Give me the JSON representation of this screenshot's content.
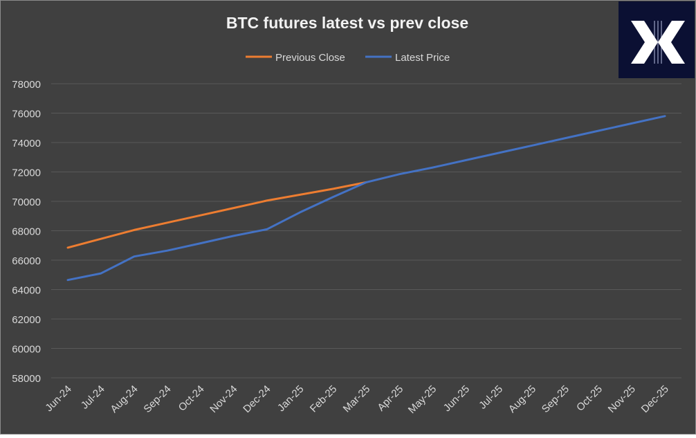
{
  "chart_data": {
    "type": "line",
    "title": "BTC futures latest vs prev close",
    "xlabel": "",
    "ylabel": "",
    "ylim": [
      58000,
      78000
    ],
    "yticks": [
      58000,
      60000,
      62000,
      64000,
      66000,
      68000,
      70000,
      72000,
      74000,
      76000,
      78000
    ],
    "categories": [
      "Jun-24",
      "Jul-24",
      "Aug-24",
      "Sep-24",
      "Oct-24",
      "Nov-24",
      "Dec-24",
      "Jan-25",
      "Feb-25",
      "Mar-25",
      "Apr-25",
      "May-25",
      "Jun-25",
      "Jul-25",
      "Aug-25",
      "Sep-25",
      "Oct-25",
      "Nov-25",
      "Dec-25"
    ],
    "grid": true,
    "legend_position": "top",
    "series": [
      {
        "name": "Previous Close",
        "color": "#ED7D31",
        "values": [
          66850,
          67450,
          68050,
          68550,
          69050,
          69550,
          70050,
          70450,
          70850,
          71300,
          null,
          null,
          null,
          null,
          null,
          null,
          null,
          null,
          null
        ]
      },
      {
        "name": "Latest Price",
        "color": "#4472C4",
        "values": [
          64650,
          65100,
          66250,
          66650,
          67150,
          67650,
          68100,
          69250,
          70300,
          71300,
          71850,
          72300,
          72800,
          73300,
          73800,
          74300,
          74800,
          75300,
          75800
        ]
      }
    ]
  },
  "colors": {
    "background": "#404040",
    "grid": "#595959",
    "text": "#D9D9D9",
    "title": "#F2F2F2",
    "logo_bg": "#0B1033",
    "logo_fg": "#FFFFFF"
  },
  "logo": {
    "icon": "x-brand-logo-icon"
  }
}
